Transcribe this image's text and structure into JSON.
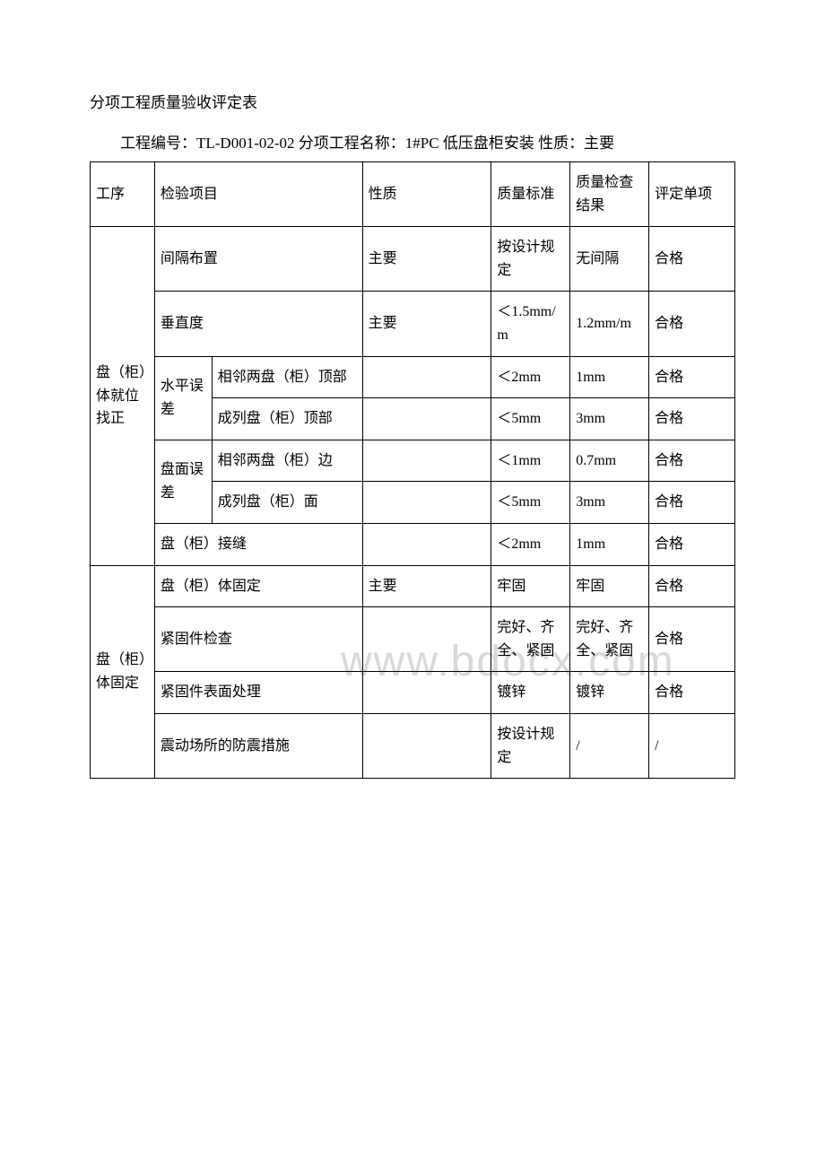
{
  "title": "分项工程质量验收评定表",
  "subtitle": "工程编号：TL-D001-02-02 分项工程名称：1#PC 低压盘柜安装 性质：主要",
  "watermark": "www.bdocx.com",
  "header": {
    "c1": "工序",
    "c2": "检验项目",
    "c3": "性质",
    "c4": "质量标准",
    "c5": "质量检查结果",
    "c6": "评定单项"
  },
  "section1": {
    "name": "盘（柜）体就位找正",
    "r1": {
      "c2": "间隔布置",
      "c3": "主要",
      "c4": "按设计规定",
      "c5": "无间隔",
      "c6": "合格"
    },
    "r2": {
      "c2": "垂直度",
      "c3": "主要",
      "c4": "＜1.5mm/m",
      "c5": "1.2mm/m",
      "c6": "合格"
    },
    "r3": {
      "g": "水平误差",
      "c2": "相邻两盘（柜）顶部",
      "c3": "",
      "c4": "＜2mm",
      "c5": "1mm",
      "c6": "合格"
    },
    "r4": {
      "c2": "成列盘（柜）顶部",
      "c3": "",
      "c4": "＜5mm",
      "c5": "3mm",
      "c6": "合格"
    },
    "r5": {
      "g": "盘面误差",
      "c2": "相邻两盘（柜）边",
      "c3": "",
      "c4": "＜1mm",
      "c5": "0.7mm",
      "c6": "合格"
    },
    "r6": {
      "c2": "成列盘（柜）面",
      "c3": "",
      "c4": "＜5mm",
      "c5": "3mm",
      "c6": "合格"
    },
    "r7": {
      "c2": "盘（柜）接缝",
      "c3": "",
      "c4": "＜2mm",
      "c5": "1mm",
      "c6": "合格"
    }
  },
  "section2": {
    "name": "盘（柜）体固定",
    "r1": {
      "c2": "盘（柜）体固定",
      "c3": "主要",
      "c4": "牢固",
      "c5": "牢固",
      "c6": "合格"
    },
    "r2": {
      "c2": "紧固件检查",
      "c3": "",
      "c4": "完好、齐全、紧固",
      "c5": "完好、齐全、紧固",
      "c6": "合格"
    },
    "r3": {
      "c2": "紧固件表面处理",
      "c3": "",
      "c4": "镀锌",
      "c5": "镀锌",
      "c6": "合格"
    },
    "r4": {
      "c2": "震动场所的防震措施",
      "c3": "",
      "c4": "按设计规定",
      "c5": "/",
      "c6": "/"
    }
  }
}
